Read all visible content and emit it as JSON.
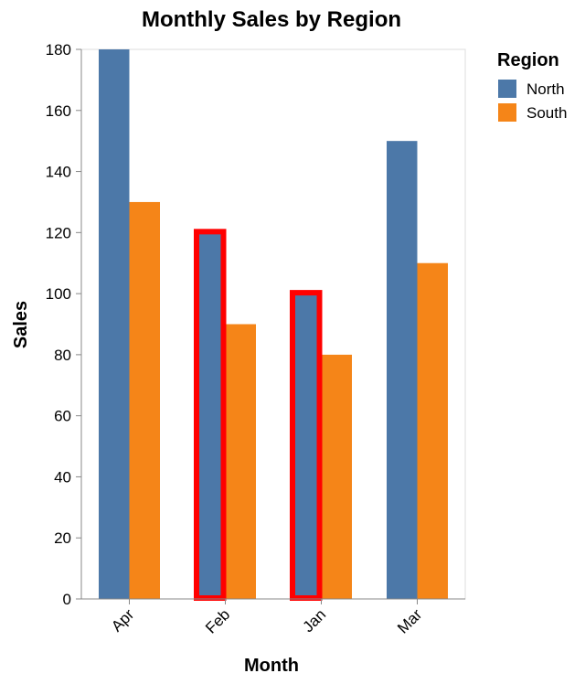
{
  "chart_data": {
    "type": "bar",
    "title": "Monthly Sales by Region",
    "xlabel": "Month",
    "ylabel": "Sales",
    "categories": [
      "Apr",
      "Feb",
      "Jan",
      "Mar"
    ],
    "series": [
      {
        "name": "North",
        "values": [
          180,
          120,
          100,
          150
        ],
        "color": "#4c78a8"
      },
      {
        "name": "South",
        "values": [
          130,
          90,
          80,
          110
        ],
        "color": "#f58518"
      }
    ],
    "ylim": [
      0,
      180
    ],
    "yticks": [
      0,
      20,
      40,
      60,
      80,
      100,
      120,
      140,
      160,
      180
    ],
    "grid": false,
    "legend": {
      "title": "Region",
      "position": "right"
    },
    "highlights": [
      {
        "category": "Feb",
        "series": "North",
        "color": "#ff0000"
      },
      {
        "category": "Jan",
        "series": "North",
        "color": "#ff0000"
      }
    ]
  }
}
